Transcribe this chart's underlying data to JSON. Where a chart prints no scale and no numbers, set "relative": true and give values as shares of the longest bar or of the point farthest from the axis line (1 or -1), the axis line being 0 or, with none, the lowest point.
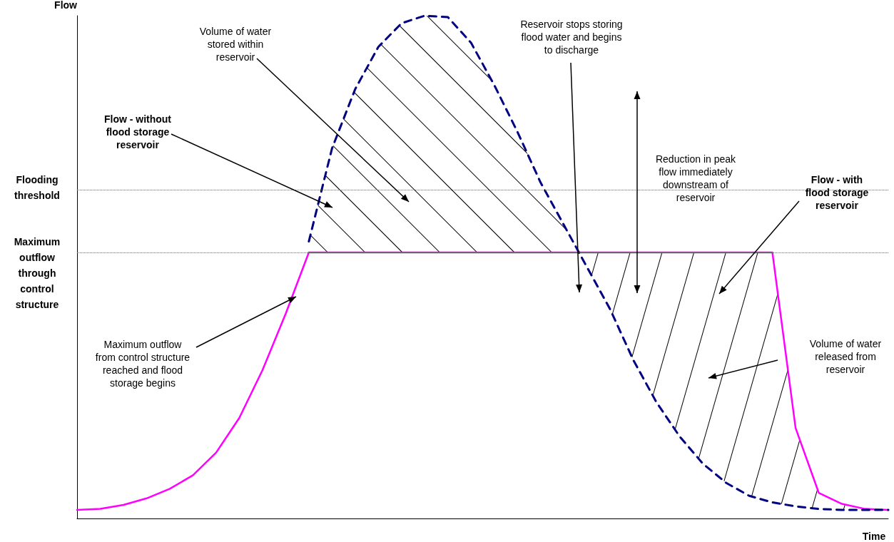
{
  "chart_data": {
    "type": "line",
    "relative": true,
    "xlabel": "Time",
    "ylabel": "Flow",
    "marker": "none",
    "categories": [
      null,
      null,
      null,
      null,
      null,
      null,
      null,
      null,
      null,
      null,
      null,
      null,
      null,
      null,
      null,
      null,
      null,
      null,
      null,
      null,
      null,
      null,
      null,
      null,
      null,
      null,
      null,
      null,
      null,
      null,
      null,
      null,
      null,
      null,
      null,
      null
    ],
    "series": [
      {
        "name": "Flow - without flood storage reservoir",
        "color": "#000080",
        "line_style": "dashed",
        "values": [
          null,
          null,
          null,
          null,
          null,
          null,
          null,
          null,
          null,
          null,
          0.551,
          0.736,
          0.854,
          0.938,
          0.985,
          1,
          0.997,
          0.946,
          0.862,
          0.769,
          0.668,
          0.584,
          0.5,
          0.416,
          0.315,
          0.231,
          0.163,
          0.109,
          0.071,
          0.045,
          0.032,
          0.024,
          0.019,
          0.017,
          0.017,
          0.017
        ]
      },
      {
        "name": "Flow - with flood storage reservoir",
        "color": "#ff00ff",
        "line_style": "solid",
        "values": [
          0.017,
          0.019,
          0.027,
          0.04,
          0.059,
          0.086,
          0.131,
          0.2,
          0.295,
          0.407,
          0.529,
          0.529,
          0.529,
          0.529,
          0.529,
          0.529,
          0.529,
          0.529,
          0.529,
          0.529,
          0.529,
          0.529,
          0.529,
          0.529,
          0.529,
          0.529,
          0.529,
          0.529,
          0.529,
          0.529,
          0.529,
          0.18,
          0.051,
          0.029,
          0.019,
          0.017
        ]
      }
    ],
    "ref_lines": [
      {
        "axis": "y",
        "value": 0.653,
        "label": "Flooding threshold",
        "color": "#666666",
        "line_style": "dotted"
      },
      {
        "axis": "y",
        "value": 0.529,
        "label": "Maximum outflow through control structure",
        "color": "#666666",
        "line_style": "dotted"
      }
    ],
    "annotations": [
      "Volume of water stored within reservoir",
      "Reservoir stops storing flood water and begins to discharge",
      "Reduction in peak flow immediately downstream of reservoir",
      "Maximum outflow from control structure reached and flood storage begins",
      "Volume of water released from reservoir"
    ]
  }
}
